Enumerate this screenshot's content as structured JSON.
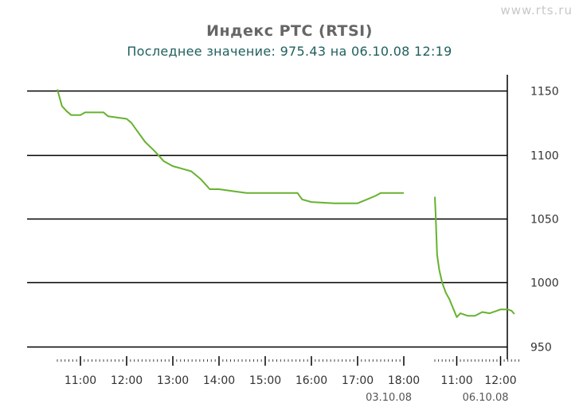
{
  "watermark": "www.rts.ru",
  "chart_data": {
    "type": "line",
    "title": "Индекс РТС (RTSI)",
    "subtitle": "Последнее значение: 975.43 на 06.10.08 12:19",
    "ylim": [
      940,
      1160
    ],
    "y_ticks": [
      950,
      1000,
      1050,
      1100,
      1150
    ],
    "grid": false,
    "line_color": "#66b22e",
    "panels": [
      {
        "date_label": "03.10.08",
        "time_range": [
          "10:30",
          "18:00"
        ],
        "x_ticks": [
          "11:00",
          "12:00",
          "13:00",
          "14:00",
          "15:00",
          "16:00",
          "17:00",
          "18:00"
        ],
        "series": [
          {
            "x": "10:30",
            "y": 1151
          },
          {
            "x": "10:36",
            "y": 1138
          },
          {
            "x": "10:42",
            "y": 1134
          },
          {
            "x": "10:48",
            "y": 1131
          },
          {
            "x": "11:00",
            "y": 1131
          },
          {
            "x": "11:06",
            "y": 1133
          },
          {
            "x": "11:30",
            "y": 1133
          },
          {
            "x": "11:36",
            "y": 1130
          },
          {
            "x": "12:00",
            "y": 1128
          },
          {
            "x": "12:06",
            "y": 1125
          },
          {
            "x": "12:12",
            "y": 1120
          },
          {
            "x": "12:24",
            "y": 1110
          },
          {
            "x": "12:36",
            "y": 1103
          },
          {
            "x": "12:48",
            "y": 1095
          },
          {
            "x": "13:00",
            "y": 1091
          },
          {
            "x": "13:12",
            "y": 1089
          },
          {
            "x": "13:24",
            "y": 1087
          },
          {
            "x": "13:36",
            "y": 1081
          },
          {
            "x": "13:48",
            "y": 1073
          },
          {
            "x": "14:00",
            "y": 1073
          },
          {
            "x": "14:12",
            "y": 1072
          },
          {
            "x": "14:24",
            "y": 1071
          },
          {
            "x": "14:36",
            "y": 1070
          },
          {
            "x": "15:00",
            "y": 1070
          },
          {
            "x": "15:30",
            "y": 1070
          },
          {
            "x": "15:42",
            "y": 1070
          },
          {
            "x": "15:48",
            "y": 1065
          },
          {
            "x": "16:00",
            "y": 1063
          },
          {
            "x": "16:30",
            "y": 1062
          },
          {
            "x": "17:00",
            "y": 1062
          },
          {
            "x": "17:12",
            "y": 1065
          },
          {
            "x": "17:24",
            "y": 1068
          },
          {
            "x": "17:30",
            "y": 1070
          },
          {
            "x": "18:00",
            "y": 1070
          }
        ]
      },
      {
        "date_label": "06.10.08",
        "time_range": [
          "10:30",
          "12:19"
        ],
        "x_ticks": [
          "11:00",
          "12:00"
        ],
        "series": [
          {
            "x": "10:30",
            "y": 1067
          },
          {
            "x": "10:31",
            "y": 1055
          },
          {
            "x": "10:33",
            "y": 1022
          },
          {
            "x": "10:36",
            "y": 1010
          },
          {
            "x": "10:40",
            "y": 1000
          },
          {
            "x": "10:45",
            "y": 992
          },
          {
            "x": "10:50",
            "y": 987
          },
          {
            "x": "10:55",
            "y": 980
          },
          {
            "x": "11:00",
            "y": 973
          },
          {
            "x": "11:05",
            "y": 976
          },
          {
            "x": "11:15",
            "y": 974
          },
          {
            "x": "11:25",
            "y": 974
          },
          {
            "x": "11:35",
            "y": 977
          },
          {
            "x": "11:45",
            "y": 976
          },
          {
            "x": "11:55",
            "y": 978
          },
          {
            "x": "12:00",
            "y": 979
          },
          {
            "x": "12:10",
            "y": 979
          },
          {
            "x": "12:15",
            "y": 978
          },
          {
            "x": "12:19",
            "y": 975.43
          }
        ]
      }
    ]
  }
}
